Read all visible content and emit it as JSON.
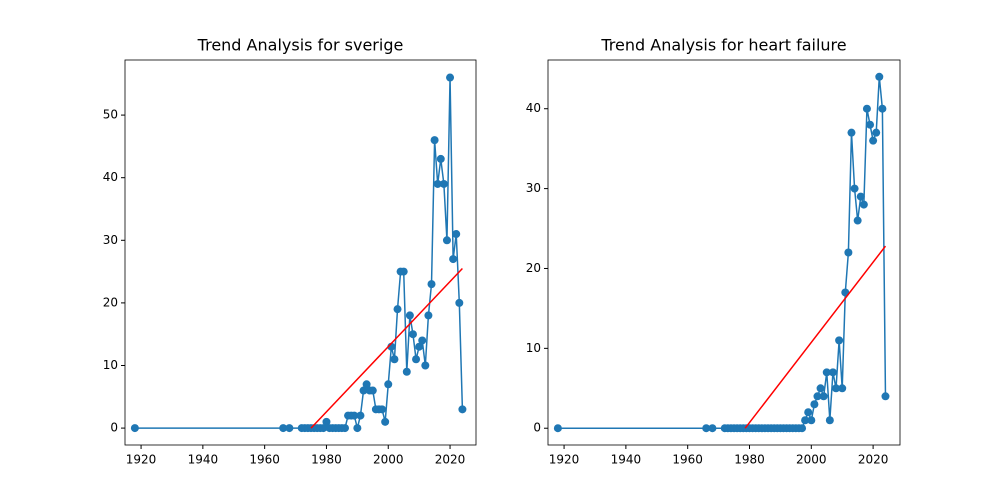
{
  "chart_data": [
    {
      "type": "line",
      "title": "Trend Analysis for sverige",
      "xlim": [
        1914.8,
        2028.4
      ],
      "ylim": [
        -2.7,
        58.8
      ],
      "xticks": [
        1920,
        1940,
        1960,
        1980,
        2000,
        2020
      ],
      "yticks": [
        0,
        10,
        20,
        30,
        40,
        50
      ],
      "series": [
        {
          "color": "#1f77b4",
          "marker": true,
          "x": [
            1918,
            1966,
            1968,
            1972,
            1973,
            1974,
            1975,
            1976,
            1977,
            1978,
            1979,
            1980,
            1981,
            1982,
            1983,
            1984,
            1985,
            1986,
            1987,
            1988,
            1989,
            1990,
            1991,
            1992,
            1993,
            1994,
            1995,
            1996,
            1997,
            1998,
            1999,
            2000,
            2001,
            2002,
            2003,
            2004,
            2005,
            2006,
            2007,
            2008,
            2009,
            2010,
            2011,
            2012,
            2013,
            2014,
            2015,
            2016,
            2017,
            2018,
            2019,
            2020,
            2021,
            2022,
            2023,
            2024
          ],
          "values": [
            0,
            0,
            0,
            0,
            0,
            0,
            0,
            0,
            0,
            0,
            0,
            1,
            0,
            0,
            0,
            0,
            0,
            0,
            2,
            2,
            2,
            0,
            2,
            6,
            7,
            6,
            6,
            3,
            3,
            3,
            1,
            7,
            13,
            11,
            19,
            25,
            25,
            9,
            18,
            15,
            11,
            13,
            14,
            10,
            18,
            23,
            46,
            39,
            43,
            39,
            30,
            56,
            27,
            31,
            20,
            3
          ]
        },
        {
          "color": "#ff0000",
          "marker": false,
          "x": [
            1975,
            2024
          ],
          "values": [
            0,
            25.5
          ]
        }
      ]
    },
    {
      "type": "line",
      "title": "Trend Analysis for heart failure",
      "xlim": [
        1914.8,
        2028.7
      ],
      "ylim": [
        -2.1,
        46.1
      ],
      "xticks": [
        1920,
        1940,
        1960,
        1980,
        2000,
        2020
      ],
      "yticks": [
        0,
        10,
        20,
        30,
        40
      ],
      "series": [
        {
          "color": "#1f77b4",
          "marker": true,
          "x": [
            1918,
            1966,
            1968,
            1972,
            1973,
            1974,
            1975,
            1976,
            1977,
            1978,
            1979,
            1980,
            1981,
            1982,
            1983,
            1984,
            1985,
            1986,
            1987,
            1988,
            1989,
            1990,
            1991,
            1992,
            1993,
            1994,
            1995,
            1996,
            1997,
            1998,
            1999,
            2000,
            2001,
            2002,
            2003,
            2004,
            2005,
            2006,
            2007,
            2008,
            2009,
            2010,
            2011,
            2012,
            2013,
            2014,
            2015,
            2016,
            2017,
            2018,
            2019,
            2020,
            2021,
            2022,
            2023,
            2024
          ],
          "values": [
            0,
            0,
            0,
            0,
            0,
            0,
            0,
            0,
            0,
            0,
            0,
            0,
            0,
            0,
            0,
            0,
            0,
            0,
            0,
            0,
            0,
            0,
            0,
            0,
            0,
            0,
            0,
            0,
            0,
            1,
            2,
            1,
            3,
            4,
            5,
            4,
            7,
            1,
            7,
            5,
            11,
            5,
            17,
            22,
            37,
            30,
            26,
            29,
            28,
            40,
            38,
            36,
            37,
            44,
            40,
            4
          ]
        },
        {
          "color": "#ff0000",
          "marker": false,
          "x": [
            1978.6,
            2024
          ],
          "values": [
            0,
            22.8
          ]
        }
      ]
    }
  ]
}
